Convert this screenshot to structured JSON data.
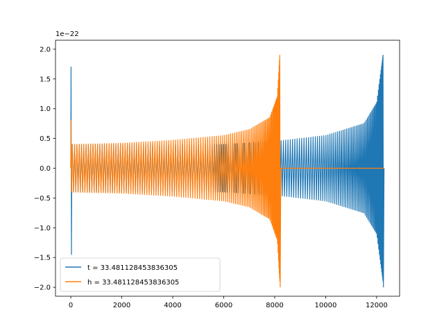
{
  "chart_data": {
    "type": "line",
    "title": "",
    "xlabel": "",
    "ylabel": "",
    "offset_label": "1e−22",
    "xlim": [
      -600,
      12900
    ],
    "ylim": [
      -2.15,
      2.15
    ],
    "xticks": [
      0,
      2000,
      4000,
      6000,
      8000,
      10000,
      12000
    ],
    "xtick_labels": [
      "0",
      "2000",
      "4000",
      "6000",
      "8000",
      "10000",
      "12000"
    ],
    "yticks": [
      -2.0,
      -1.5,
      -1.0,
      -0.5,
      0.0,
      0.5,
      1.0,
      1.5,
      2.0
    ],
    "ytick_labels": [
      "−2.0",
      "−1.5",
      "−1.0",
      "−0.5",
      "0.0",
      "0.5",
      "1.0",
      "1.5",
      "2.0"
    ],
    "grid": false,
    "legend_position": "lower-left",
    "series": [
      {
        "name": "t = 33.481128453836305",
        "color": "#1f77b4",
        "x": [
          0,
          2000,
          4000,
          6000,
          8000,
          10000,
          11500,
          12000,
          12250
        ],
        "envelope": [
          0.4,
          0.4,
          0.4,
          0.4,
          0.45,
          0.55,
          0.75,
          1.1,
          1.9
        ],
        "initial_spike": [
          1.7,
          -1.45
        ],
        "end_x": 12300
      },
      {
        "name": "h = 33.481128453836305",
        "color": "#ff7f0e",
        "x": [
          0,
          2000,
          4000,
          6000,
          7000,
          7800,
          8100,
          8200
        ],
        "envelope": [
          0.4,
          0.42,
          0.47,
          0.55,
          0.65,
          0.85,
          1.2,
          1.9
        ],
        "initial_spike": [
          0.8,
          -0.4
        ],
        "end_x": 12300
      }
    ]
  }
}
